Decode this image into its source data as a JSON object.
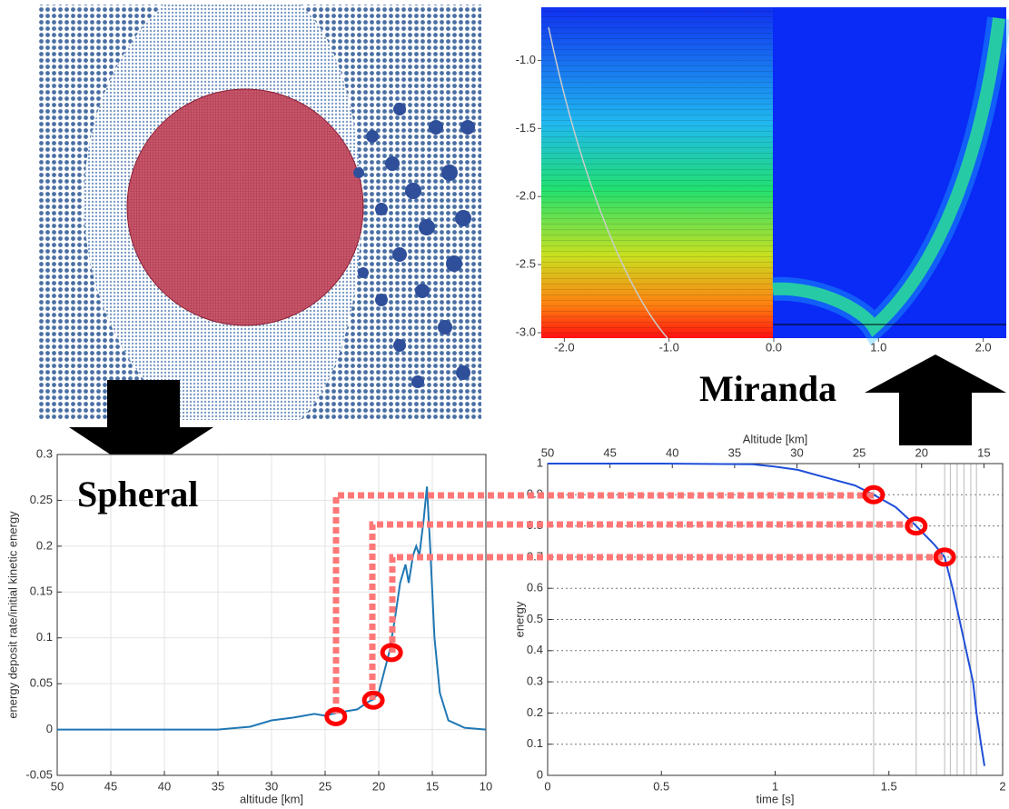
{
  "labels": {
    "spheral": "Spheral",
    "miranda": "Miranda"
  },
  "chart_data": [
    {
      "type": "field",
      "xlim": [
        -2.22,
        2.22
      ],
      "ylim": [
        -3.04,
        -0.61
      ],
      "xticks": [
        {
          "value": -2,
          "label": "-2.0"
        },
        {
          "value": -1,
          "label": "-1.0"
        },
        {
          "value": 0,
          "label": "0.0"
        },
        {
          "value": 1,
          "label": "1.0"
        },
        {
          "value": 2,
          "label": "2.0"
        }
      ],
      "yticks": [
        {
          "value": -1,
          "label": "-1.0"
        },
        {
          "value": -1.5,
          "label": "-1.5"
        },
        {
          "value": -2,
          "label": "-2.0"
        },
        {
          "value": -2.5,
          "label": "-2.5"
        },
        {
          "value": -3,
          "label": "-3.0"
        }
      ]
    },
    {
      "type": "line",
      "xlabel": "altitude [km]",
      "ylabel": "energy deposit rate/initial kinetic energy",
      "xlim": [
        50,
        10
      ],
      "ylim": [
        -0.05,
        0.3
      ],
      "xticks": [
        50,
        45,
        40,
        35,
        30,
        25,
        20,
        15,
        10
      ],
      "yticks": [
        -0.05,
        0,
        0.05,
        0.1,
        0.15,
        0.2,
        0.25,
        0.3
      ],
      "grid": true,
      "series": [
        {
          "color": "#1f77b4",
          "x": [
            50,
            40,
            35,
            32,
            30,
            28,
            26,
            25,
            24,
            22,
            21,
            20.5,
            20,
            19,
            18.5,
            18,
            17.5,
            17.2,
            16.8,
            16.5,
            16.2,
            15.8,
            15.5,
            15.2,
            14.8,
            14.3,
            13.5,
            12,
            10
          ],
          "values": [
            0,
            0,
            0,
            0.003,
            0.01,
            0.013,
            0.017,
            0.015,
            0.018,
            0.022,
            0.03,
            0.033,
            0.04,
            0.085,
            0.12,
            0.16,
            0.18,
            0.16,
            0.19,
            0.2,
            0.19,
            0.23,
            0.265,
            0.2,
            0.1,
            0.04,
            0.01,
            0.002,
            0
          ]
        },
        {
          "type": "scatter",
          "color": "#ff0000",
          "x": [
            24,
            20.5,
            18.8
          ],
          "values": [
            0.014,
            0.032,
            0.084
          ]
        }
      ]
    },
    {
      "type": "line",
      "xlabel": "time [s]",
      "ylabel": "energy",
      "x2label": "Altitude [km]",
      "xlim": [
        0,
        2
      ],
      "ylim": [
        0,
        1
      ],
      "x2lim": [
        50,
        13.5
      ],
      "xticks": [
        0,
        0.5,
        1,
        1.5,
        2
      ],
      "x2ticks": [
        50,
        45,
        40,
        35,
        30,
        25,
        20,
        15
      ],
      "yticks": [
        0,
        0.1,
        0.2,
        0.3,
        0.4,
        0.5,
        0.6,
        0.7,
        0.8,
        0.9,
        1
      ],
      "grid": true,
      "vlines": [
        1.433,
        1.62,
        1.745,
        1.77,
        1.8,
        1.83,
        1.86,
        1.885
      ],
      "series": [
        {
          "color": "#1f4fd8",
          "x": [
            0,
            0.5,
            0.9,
            1.0,
            1.1,
            1.25,
            1.35,
            1.433,
            1.53,
            1.62,
            1.7,
            1.745,
            1.78,
            1.81,
            1.84,
            1.87,
            1.885,
            1.905,
            1.92
          ],
          "values": [
            1,
            1,
            0.998,
            0.99,
            0.98,
            0.95,
            0.93,
            0.9,
            0.86,
            0.8,
            0.74,
            0.7,
            0.6,
            0.5,
            0.4,
            0.3,
            0.2,
            0.1,
            0.03
          ]
        },
        {
          "type": "scatter",
          "color": "#ff0000",
          "x": [
            1.433,
            1.62,
            1.745
          ],
          "values": [
            0.9,
            0.8,
            0.7
          ]
        }
      ]
    }
  ]
}
